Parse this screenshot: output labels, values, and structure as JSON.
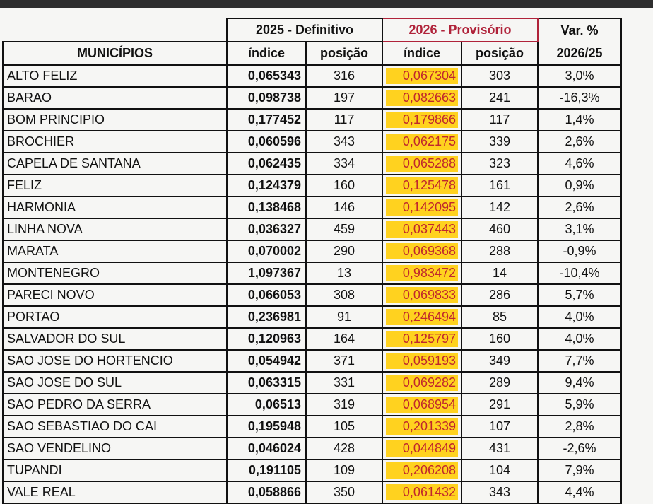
{
  "header": {
    "group_2025": "2025 - Definitivo",
    "group_2026": "2026 - Provisório",
    "var_line1": "Var. %",
    "var_line2": "2026/25",
    "municipios": "MUNICÍPIOS",
    "indice_2025": "índice",
    "posicao_2025": "posição",
    "indice_2026": "índice",
    "posicao_2026": "posição"
  },
  "rows": [
    [
      "ALTO FELIZ",
      "0,065343",
      "316",
      "0,067304",
      "303",
      "3,0%"
    ],
    [
      "BARAO",
      "0,098738",
      "197",
      "0,082663",
      "241",
      "-16,3%"
    ],
    [
      "BOM PRINCIPIO",
      "0,177452",
      "117",
      "0,179866",
      "117",
      "1,4%"
    ],
    [
      "BROCHIER",
      "0,060596",
      "343",
      "0,062175",
      "339",
      "2,6%"
    ],
    [
      "CAPELA DE SANTANA",
      "0,062435",
      "334",
      "0,065288",
      "323",
      "4,6%"
    ],
    [
      "FELIZ",
      "0,124379",
      "160",
      "0,125478",
      "161",
      "0,9%"
    ],
    [
      "HARMONIA",
      "0,138468",
      "146",
      "0,142095",
      "142",
      "2,6%"
    ],
    [
      "LINHA NOVA",
      "0,036327",
      "459",
      "0,037443",
      "460",
      "3,1%"
    ],
    [
      "MARATA",
      "0,070002",
      "290",
      "0,069368",
      "288",
      "-0,9%"
    ],
    [
      "MONTENEGRO",
      "1,097367",
      "13",
      "0,983472",
      "14",
      "-10,4%"
    ],
    [
      "PARECI NOVO",
      "0,066053",
      "308",
      "0,069833",
      "286",
      "5,7%"
    ],
    [
      "PORTAO",
      "0,236981",
      "91",
      "0,246494",
      "85",
      "4,0%"
    ],
    [
      "SALVADOR DO SUL",
      "0,120963",
      "164",
      "0,125797",
      "160",
      "4,0%"
    ],
    [
      "SAO JOSE DO HORTENCIO",
      "0,054942",
      "371",
      "0,059193",
      "349",
      "7,7%"
    ],
    [
      "SAO JOSE DO SUL",
      "0,063315",
      "331",
      "0,069282",
      "289",
      "9,4%"
    ],
    [
      "SAO PEDRO DA SERRA",
      "0,06513",
      "319",
      "0,068954",
      "291",
      "5,9%"
    ],
    [
      "SAO SEBASTIAO DO CAI",
      "0,195948",
      "105",
      "0,201339",
      "107",
      "2,8%"
    ],
    [
      "SAO VENDELINO",
      "0,046024",
      "428",
      "0,044849",
      "431",
      "-2,6%"
    ],
    [
      "TUPANDI",
      "0,191105",
      "109",
      "0,206208",
      "104",
      "7,9%"
    ],
    [
      "VALE REAL",
      "0,058866",
      "350",
      "0,061432",
      "343",
      "4,4%"
    ]
  ]
}
